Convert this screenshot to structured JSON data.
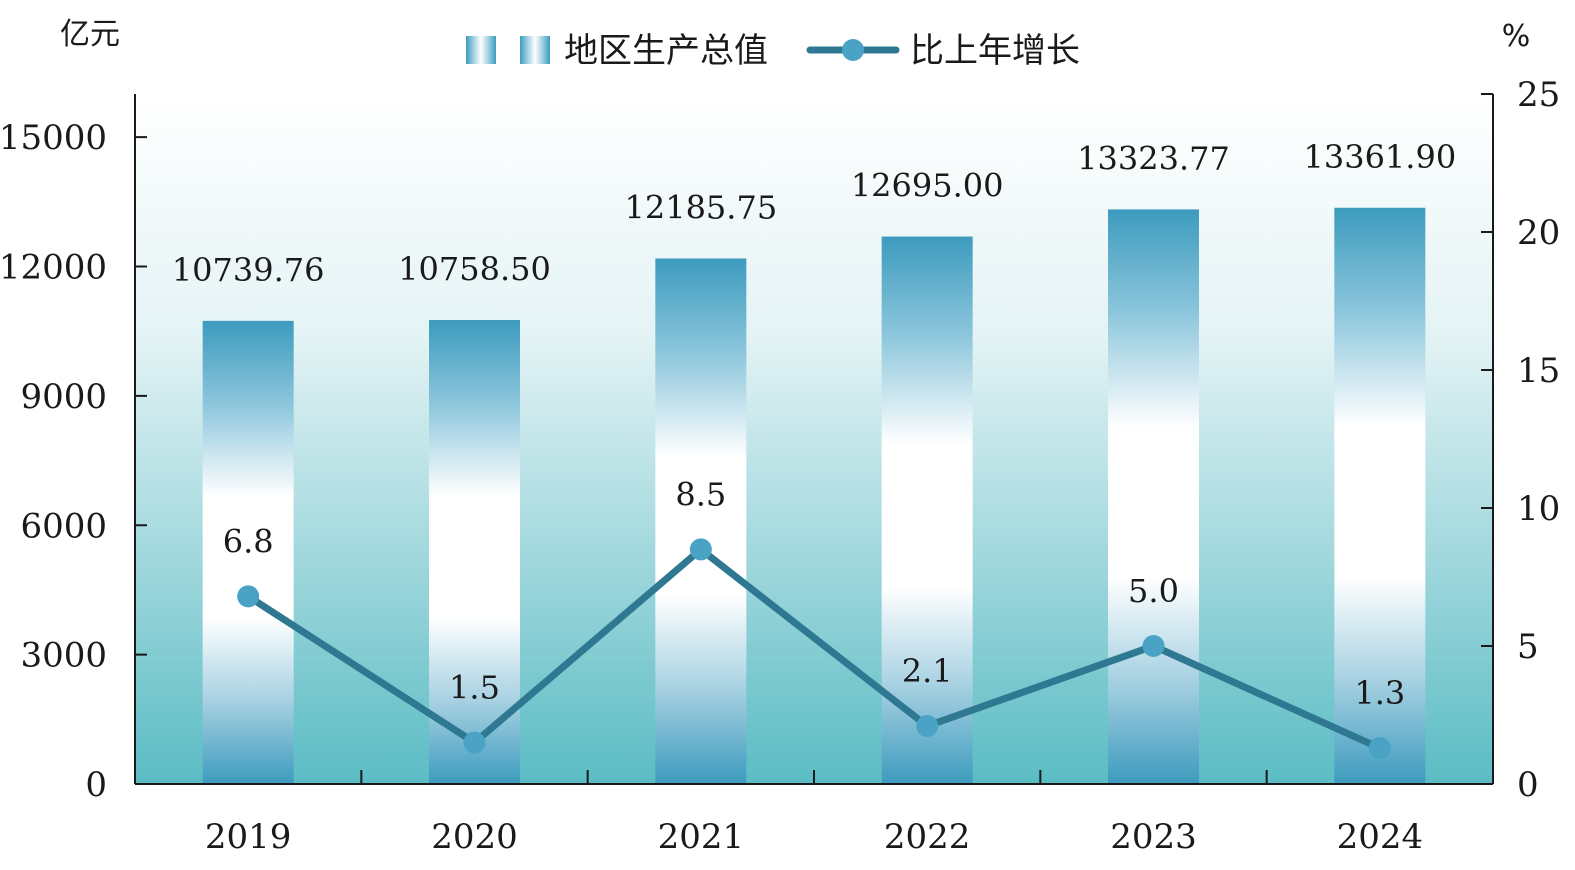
{
  "chart_data": {
    "type": "bar",
    "categories": [
      "2019",
      "2020",
      "2021",
      "2022",
      "2023",
      "2024"
    ],
    "series": [
      {
        "name": "地区生产总值",
        "type": "bar",
        "axis": "left",
        "values": [
          10739.76,
          10758.5,
          12185.75,
          12695.0,
          13323.77,
          13361.9
        ],
        "labels": [
          "10739.76",
          "10758.50",
          "12185.75",
          "12695.00",
          "13323.77",
          "13361.90"
        ]
      },
      {
        "name": "比上年增长",
        "type": "line",
        "axis": "right",
        "values": [
          6.8,
          1.5,
          8.5,
          2.1,
          5.0,
          1.3
        ],
        "labels": [
          "6.8",
          "1.5",
          "8.5",
          "2.1",
          "5.0",
          "1.3"
        ]
      }
    ],
    "y_left": {
      "unit": "亿元",
      "range": [
        0,
        16000
      ],
      "ticks": [
        0,
        3000,
        6000,
        9000,
        12000,
        15000
      ],
      "tick_labels": [
        "0",
        "3000",
        "6000",
        "9000",
        "12000",
        "15000"
      ]
    },
    "y_right": {
      "unit": "%",
      "range": [
        0,
        25
      ],
      "ticks": [
        0,
        5,
        10,
        15,
        20,
        25
      ],
      "tick_labels": [
        "0",
        "5",
        "10",
        "15",
        "20",
        "25"
      ]
    },
    "grid": false,
    "legend_position": "top-center",
    "colors": {
      "bar_dark": "#3d9bbe",
      "bar_light": "#ffffff",
      "line": "#2e7891",
      "marker": "#4aa3c4",
      "bg_top": "#ffffff",
      "bg_bottom": "#5bbcc4"
    }
  }
}
